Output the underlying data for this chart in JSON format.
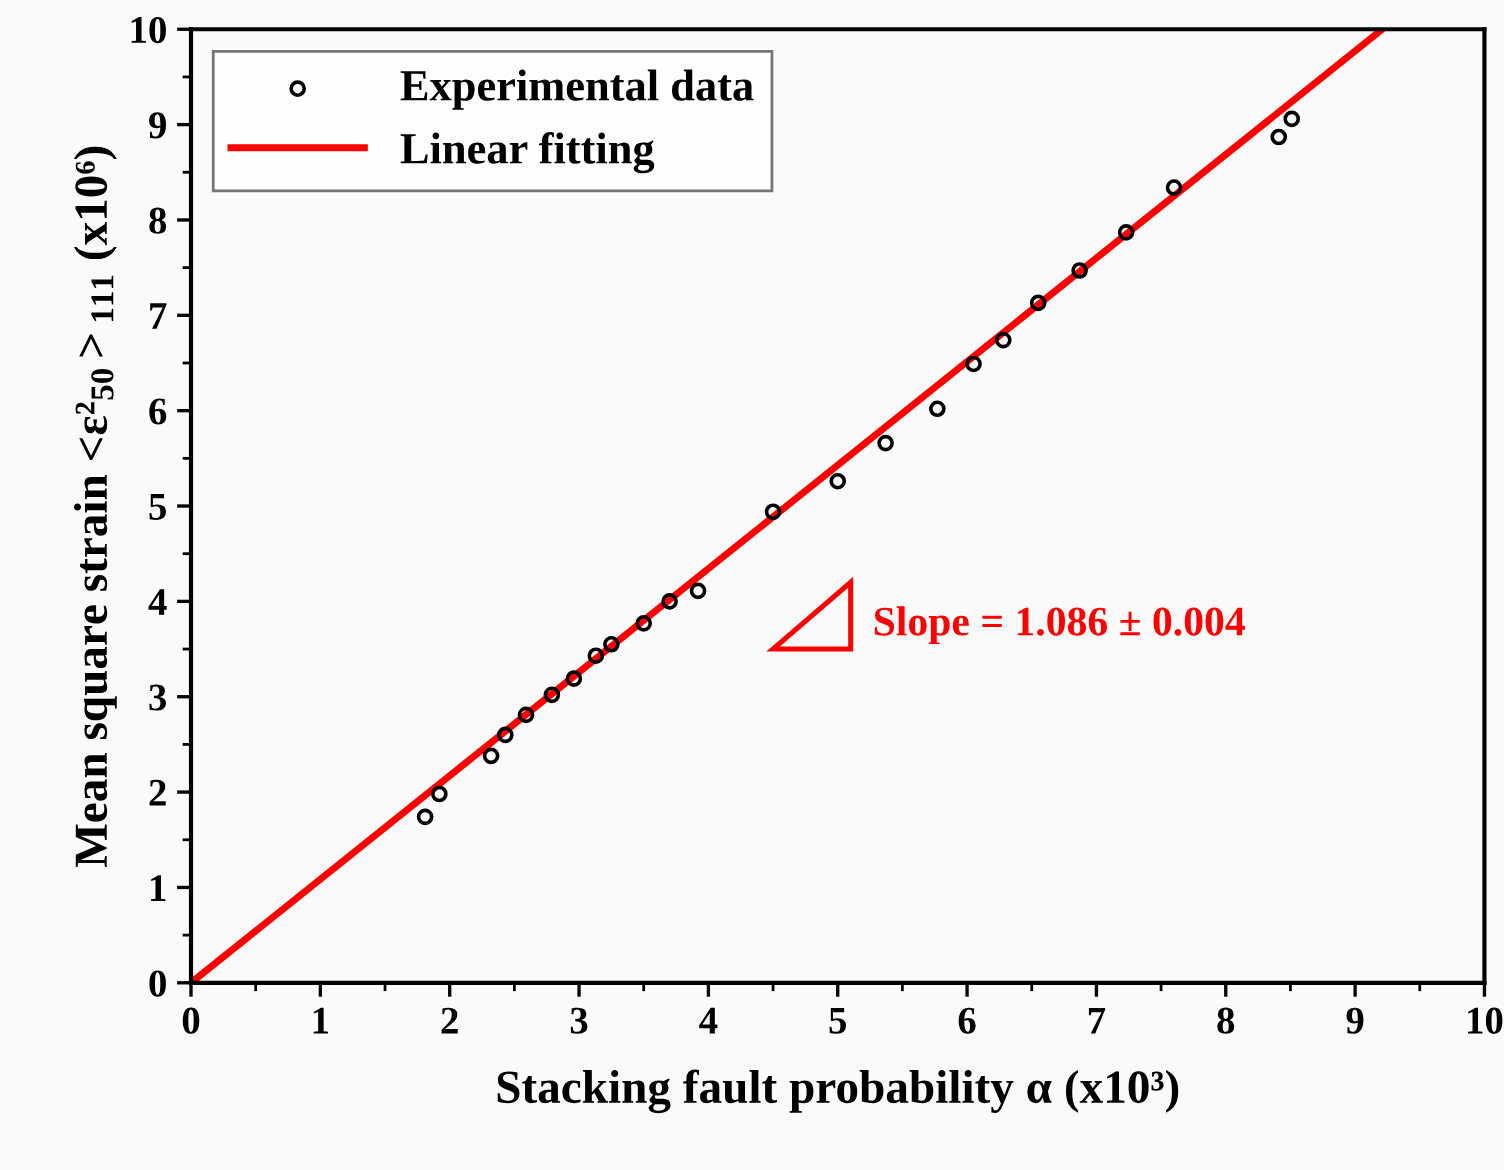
{
  "chart_data": {
    "type": "scatter",
    "xlabel": "Stacking fault probability α (x10³)",
    "ylabel": "Mean square strain <ε²$_{50}$>$_{111}$ (x10⁶)",
    "xlim": [
      0,
      10
    ],
    "ylim": [
      0,
      10
    ],
    "xticks": [
      0,
      1,
      2,
      3,
      4,
      5,
      6,
      7,
      8,
      9,
      10
    ],
    "yticks": [
      0,
      1,
      2,
      3,
      4,
      5,
      6,
      7,
      8,
      9,
      10
    ],
    "grid": false,
    "legend": "top left",
    "annotations": [
      "Slope = 1.086 ± 0.004"
    ],
    "series": [
      {
        "name": "Experimental data",
        "marker": "circle",
        "color": "#000000",
        "x": [
          1.81,
          1.92,
          2.32,
          2.43,
          2.59,
          2.79,
          2.96,
          3.13,
          3.25,
          3.5,
          3.7,
          3.92,
          4.5,
          5.0,
          5.37,
          5.77,
          6.05,
          6.28,
          6.55,
          6.87,
          7.23,
          7.6,
          8.41,
          8.51
        ],
        "values": [
          1.74,
          1.98,
          2.38,
          2.6,
          2.81,
          3.02,
          3.19,
          3.43,
          3.55,
          3.77,
          4.0,
          4.11,
          4.94,
          5.26,
          5.66,
          6.02,
          6.49,
          6.74,
          7.13,
          7.47,
          7.87,
          8.34,
          8.87,
          9.06
        ]
      },
      {
        "name": "Linear fitting",
        "type": "line",
        "marker": "none",
        "line_style": "solid",
        "color": "#ff0000",
        "x": [
          0,
          9.21
        ],
        "values": [
          0,
          10
        ]
      }
    ]
  }
}
